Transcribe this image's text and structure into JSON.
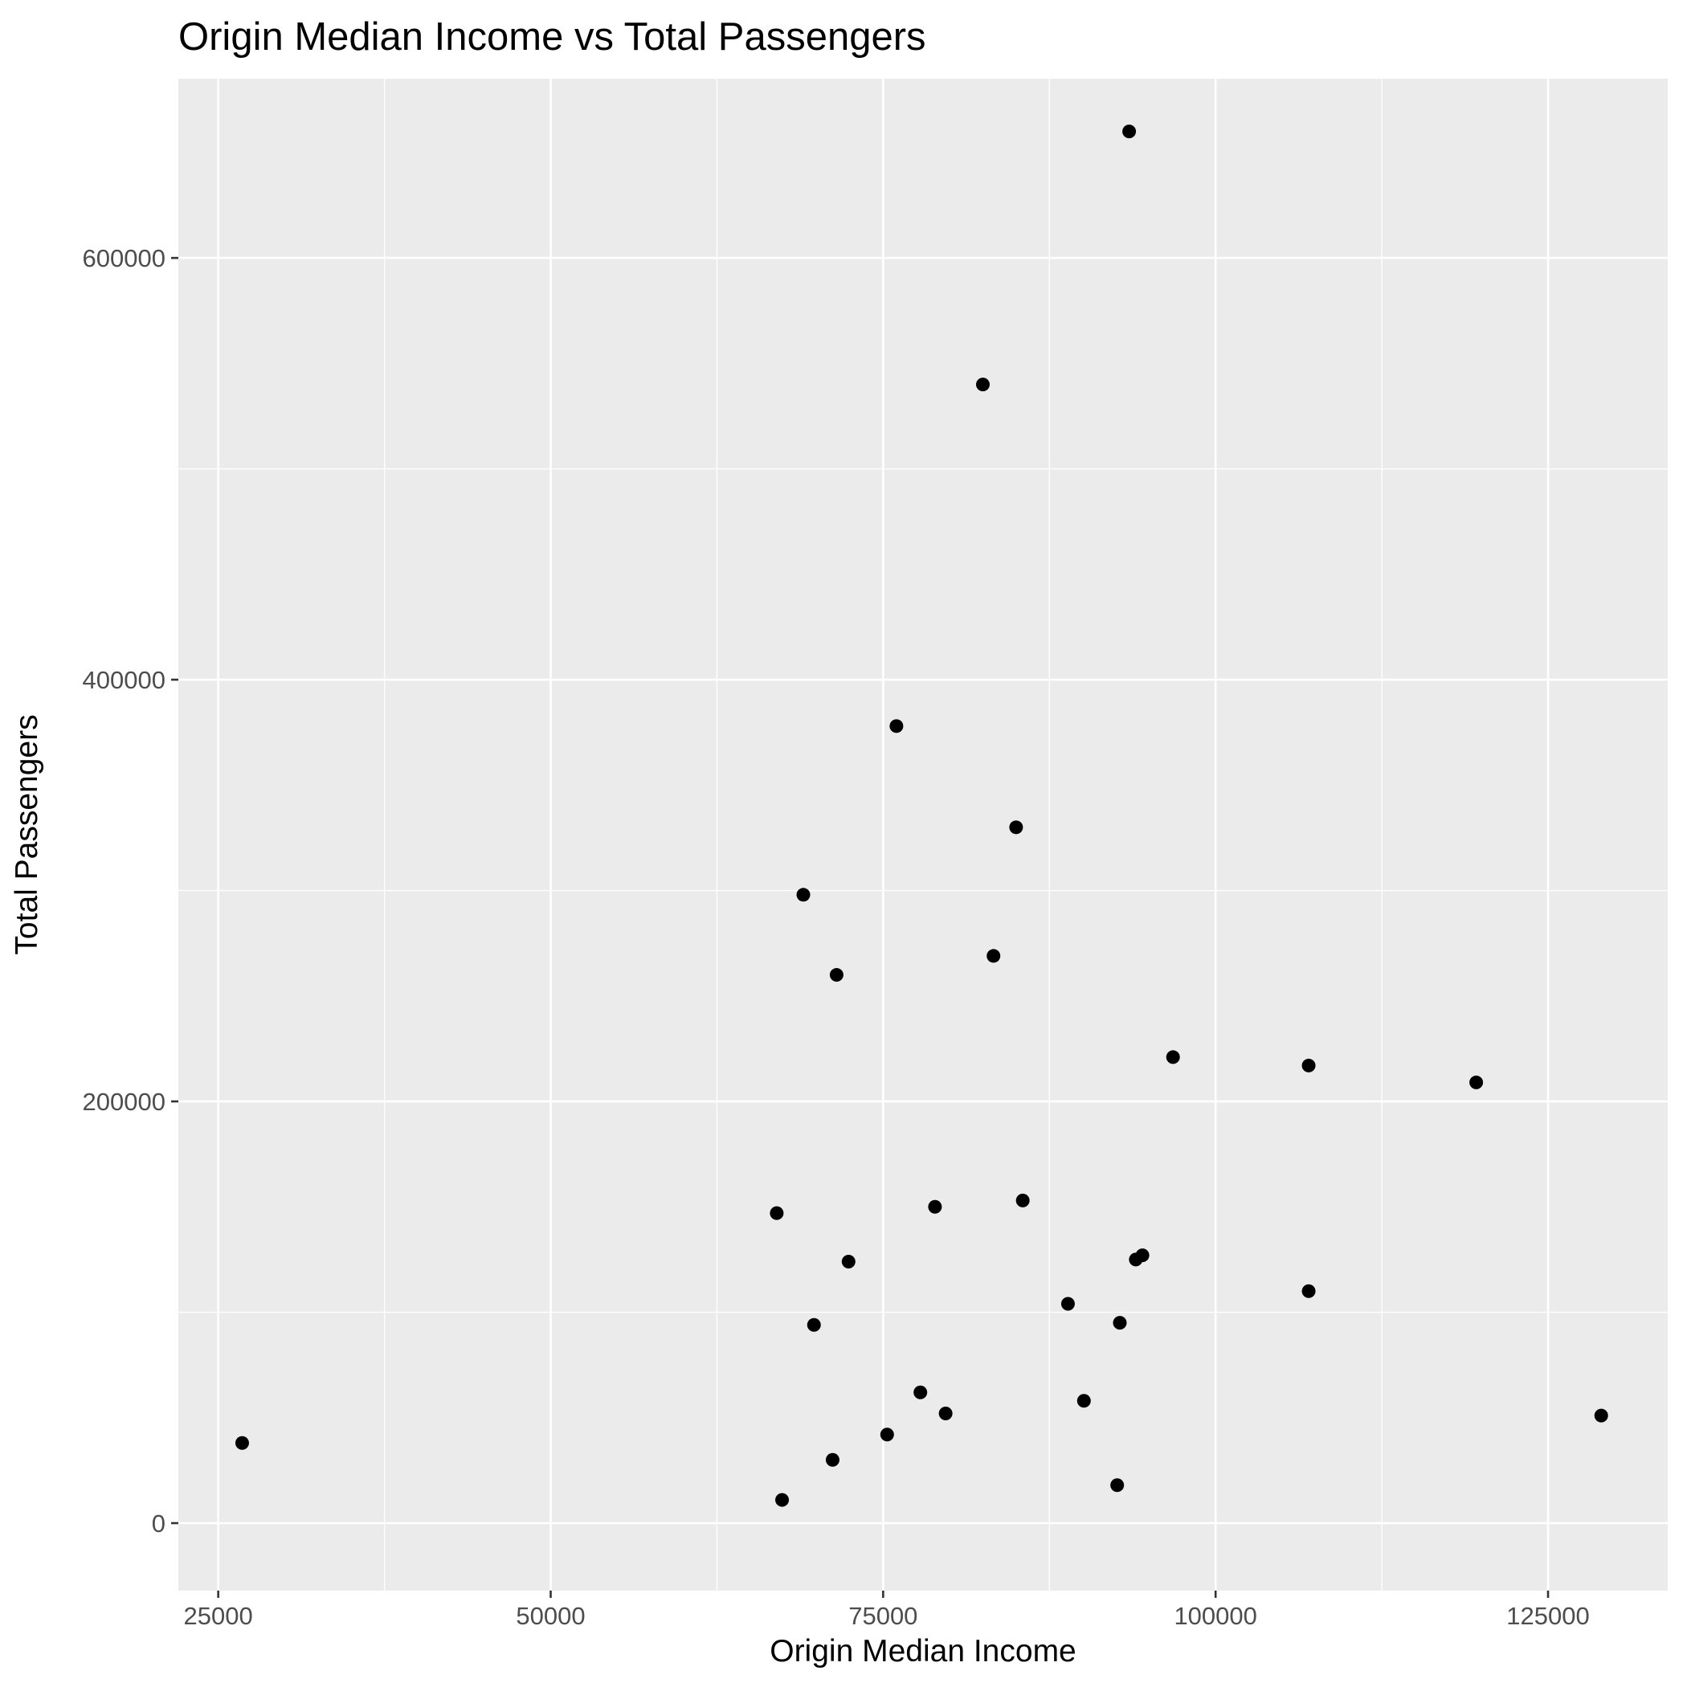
{
  "chart_data": {
    "type": "scatter",
    "title": "Origin Median Income vs Total Passengers",
    "xlabel": "Origin Median Income",
    "ylabel": "Total Passengers",
    "xlim": [
      22000,
      134000
    ],
    "ylim": [
      -32000,
      685000
    ],
    "x_major_ticks": [
      25000,
      50000,
      75000,
      100000,
      125000
    ],
    "x_minor_ticks": [
      37500,
      62500,
      87500,
      112500
    ],
    "y_major_ticks": [
      0,
      200000,
      400000,
      600000
    ],
    "y_minor_ticks": [
      100000,
      300000,
      500000
    ],
    "x_tick_labels": [
      "25000",
      "50000",
      "75000",
      "100000",
      "125000"
    ],
    "y_tick_labels": [
      "0",
      "200000",
      "400000",
      "600000"
    ],
    "grid": true,
    "legend": "none",
    "background_color": "#ebebeb",
    "point_color": "#000000",
    "points": [
      {
        "x": 93500,
        "y": 660000
      },
      {
        "x": 82500,
        "y": 540000
      },
      {
        "x": 76000,
        "y": 378000
      },
      {
        "x": 85000,
        "y": 330000
      },
      {
        "x": 69000,
        "y": 298000
      },
      {
        "x": 83300,
        "y": 269000
      },
      {
        "x": 71500,
        "y": 260000
      },
      {
        "x": 96800,
        "y": 221000
      },
      {
        "x": 107000,
        "y": 217000
      },
      {
        "x": 119600,
        "y": 209000
      },
      {
        "x": 85500,
        "y": 153000
      },
      {
        "x": 78900,
        "y": 150000
      },
      {
        "x": 67000,
        "y": 147000
      },
      {
        "x": 94500,
        "y": 127000
      },
      {
        "x": 94000,
        "y": 125000
      },
      {
        "x": 72400,
        "y": 124000
      },
      {
        "x": 107000,
        "y": 110000
      },
      {
        "x": 88900,
        "y": 104000
      },
      {
        "x": 92800,
        "y": 95000
      },
      {
        "x": 69800,
        "y": 94000
      },
      {
        "x": 77800,
        "y": 62000
      },
      {
        "x": 90100,
        "y": 58000
      },
      {
        "x": 79700,
        "y": 52000
      },
      {
        "x": 129000,
        "y": 51000
      },
      {
        "x": 26800,
        "y": 38000
      },
      {
        "x": 75300,
        "y": 42000
      },
      {
        "x": 71200,
        "y": 30000
      },
      {
        "x": 92600,
        "y": 18000
      },
      {
        "x": 67400,
        "y": 11000
      }
    ]
  }
}
